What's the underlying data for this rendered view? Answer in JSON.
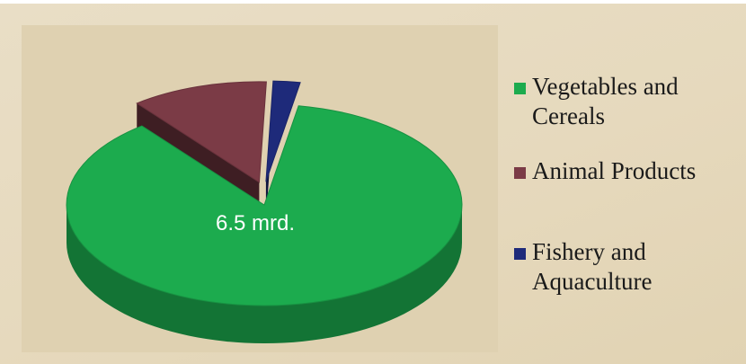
{
  "chart_data": {
    "type": "pie",
    "style": "3d",
    "slices": [
      {
        "name": "Vegetables and Cereals",
        "value": 86.6,
        "color": "#1cab4e",
        "label": "6.5 mrd."
      },
      {
        "name": "Animal Products",
        "value": 11.2,
        "color": "#7b3b46",
        "exploded": true
      },
      {
        "name": "Fishery and Aquaculture",
        "value": 2.2,
        "color": "#1e2a7a",
        "exploded": true
      }
    ],
    "legend": {
      "placement": "right",
      "entries": [
        "Vegetables and Cereals",
        "Animal Products",
        "Fishery and Aquaculture"
      ]
    }
  }
}
